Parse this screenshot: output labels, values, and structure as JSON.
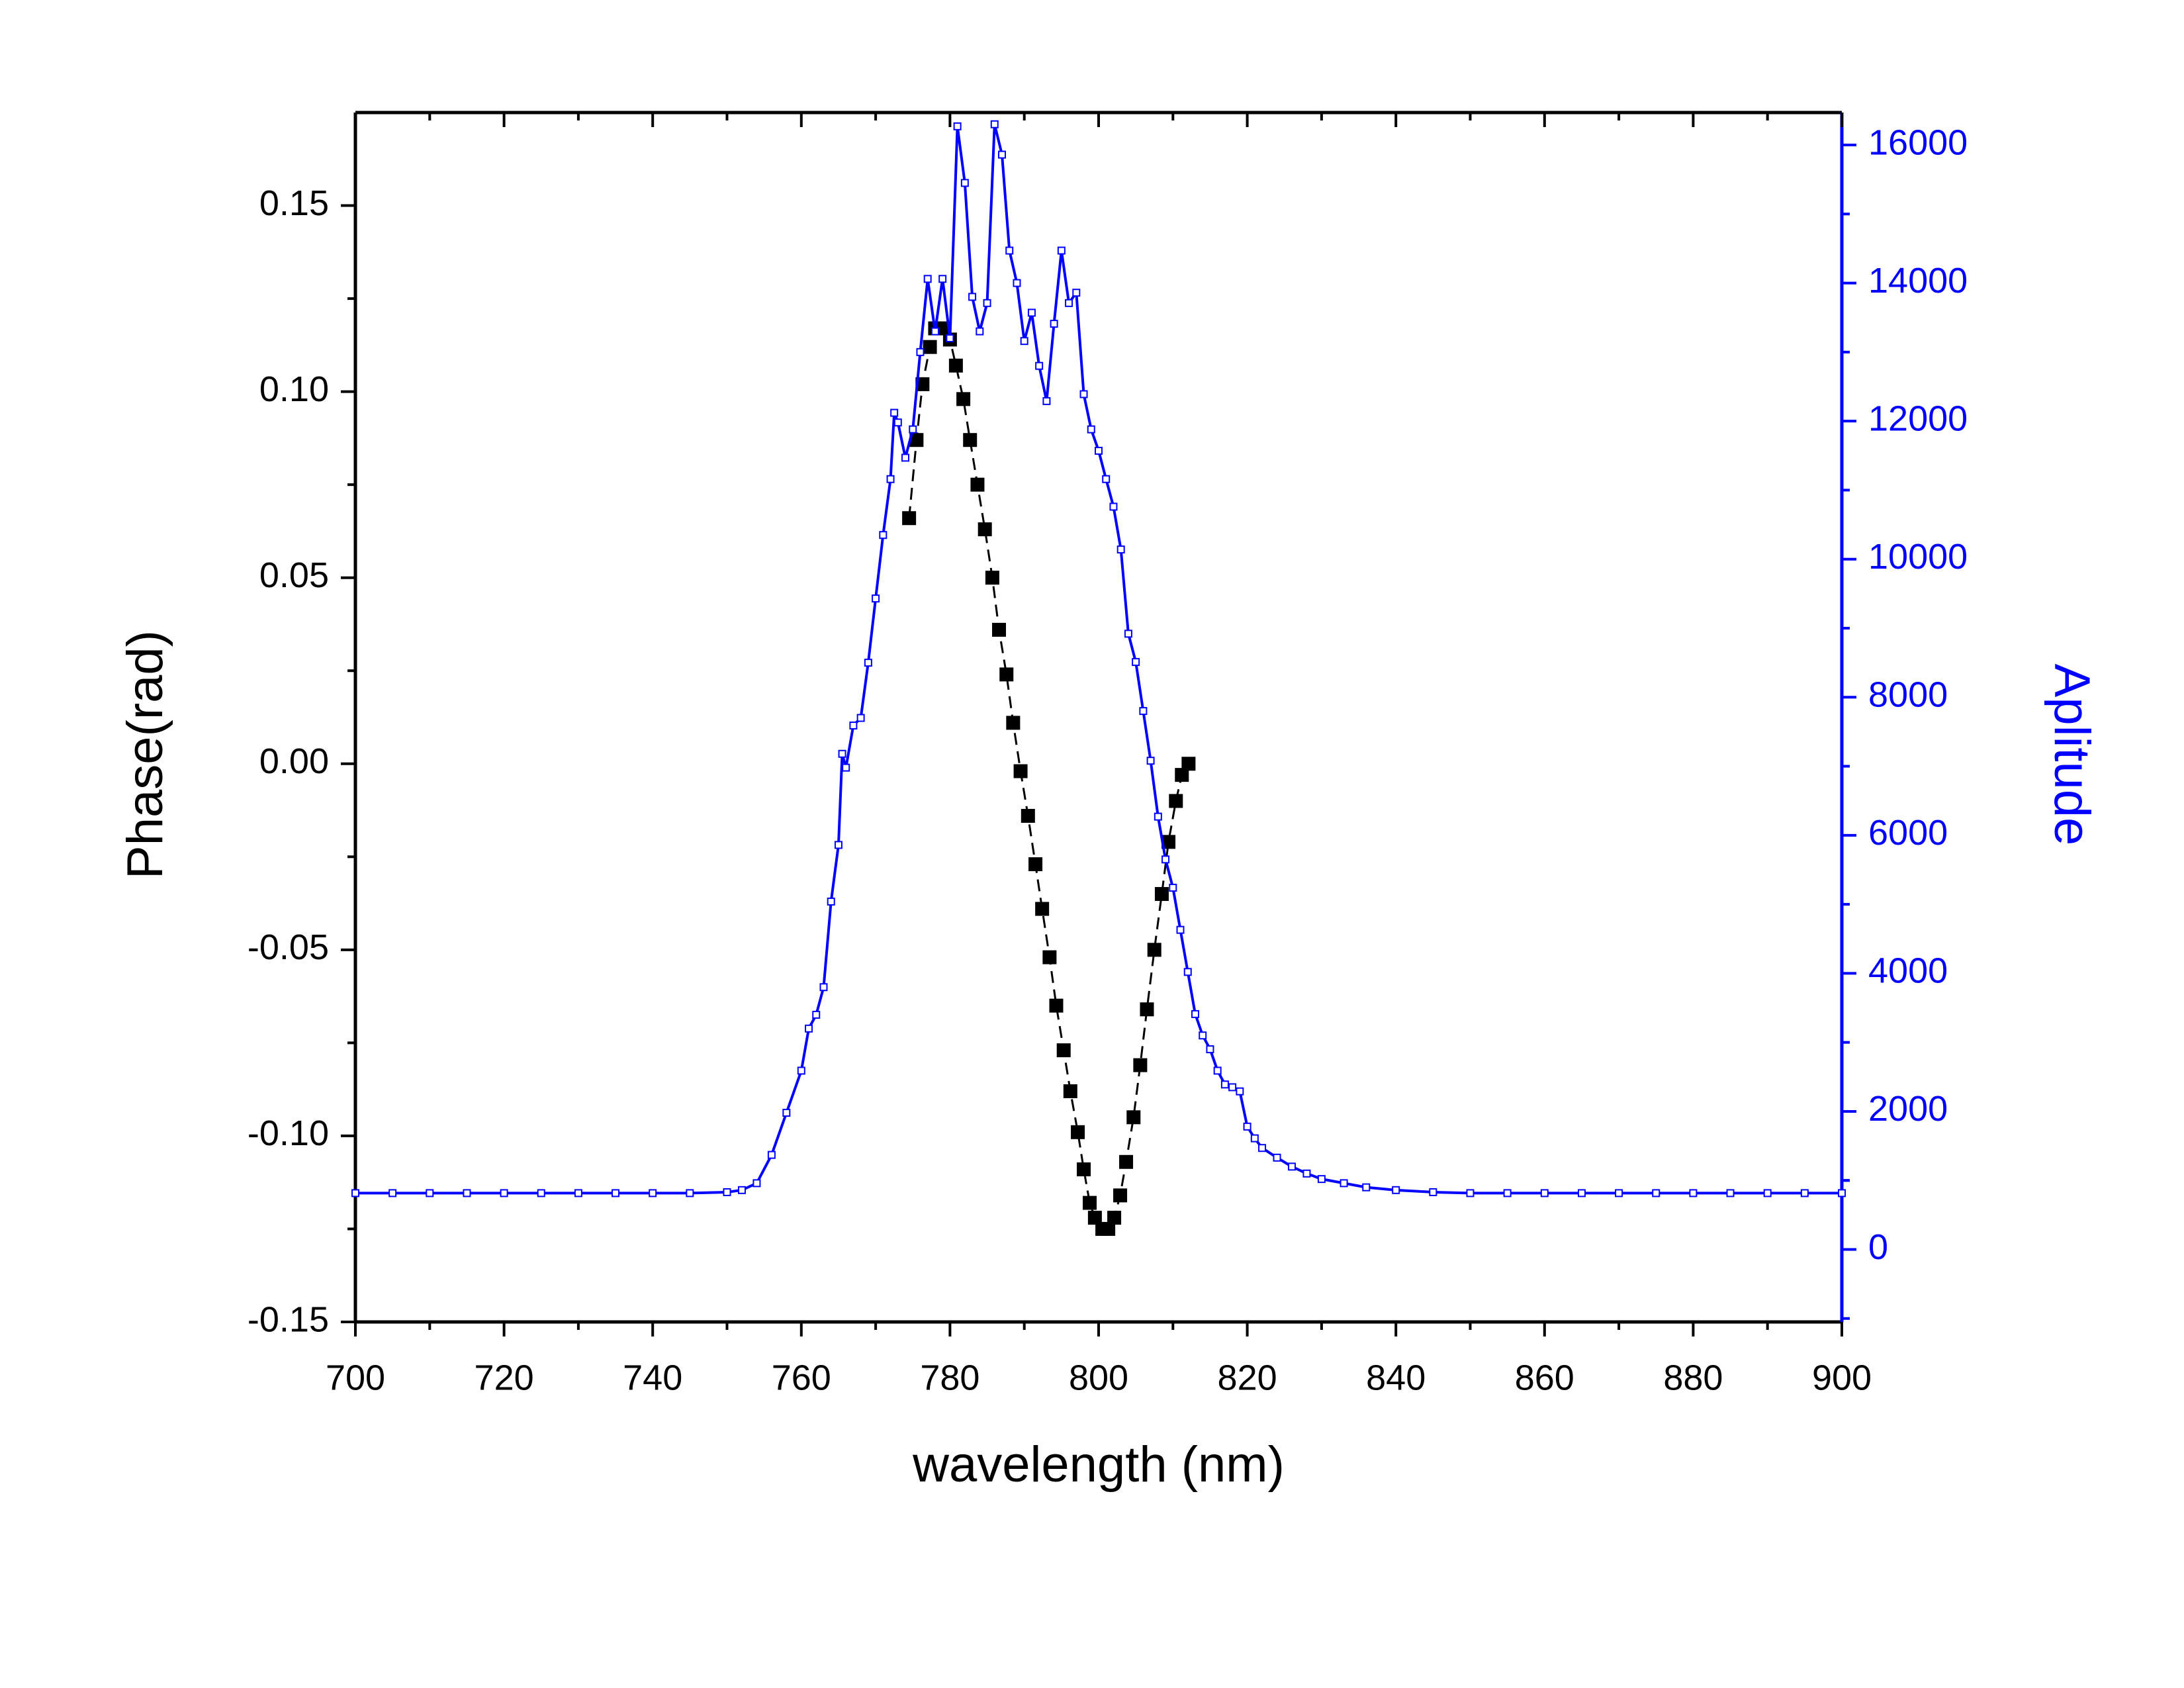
{
  "chart_data": {
    "type": "line",
    "x_label": "wavelength (nm)",
    "y_label": "Phase(rad)",
    "y2_label": "Aplitude",
    "xlim": [
      700,
      900
    ],
    "xticks": [
      700,
      720,
      740,
      760,
      780,
      800,
      820,
      840,
      860,
      880,
      900
    ],
    "ylim": [
      -0.15,
      0.175
    ],
    "yticks": [
      -0.15,
      {
        "value": -0.1,
        "label": "-0.10"
      },
      -0.05,
      {
        "value": 0,
        "label": "0.00"
      },
      0.05,
      {
        "value": 0.1,
        "label": "0.10"
      },
      0.15
    ],
    "y2lim": [
      -1050,
      16470
    ],
    "y2ticks": [
      0,
      2000,
      4000,
      6000,
      8000,
      10000,
      12000,
      14000,
      16000
    ],
    "y2color": "#0000ff",
    "series": [
      {
        "color": "#000000",
        "marker": "filled-square",
        "dash": true,
        "x": [
          774.5,
          775.5,
          776.3,
          777.3,
          778,
          779,
          780,
          780.8,
          781.8,
          782.7,
          783.7,
          784.7,
          785.7,
          786.6,
          787.6,
          788.5,
          789.5,
          790.5,
          791.5,
          792.4,
          793.4,
          794.3,
          795.3,
          796.2,
          797.2,
          798,
          798.8,
          799.5,
          800.5,
          801.3,
          802.1,
          802.9,
          803.7,
          804.7,
          805.6,
          806.5,
          807.5,
          808.5,
          809.4,
          810.4,
          811.2,
          812.1
        ],
        "values": [
          0.066,
          0.087,
          0.102,
          0.112,
          0.117,
          0.117,
          0.114,
          0.107,
          0.098,
          0.087,
          0.075,
          0.063,
          0.05,
          0.036,
          0.024,
          0.011,
          -0.002,
          -0.014,
          -0.027,
          -0.039,
          -0.052,
          -0.065,
          -0.077,
          -0.088,
          -0.099,
          -0.109,
          -0.118,
          -0.122,
          -0.125,
          -0.125,
          -0.122,
          -0.116,
          -0.107,
          -0.095,
          -0.081,
          -0.066,
          -0.05,
          -0.035,
          -0.021,
          -0.01,
          -0.003,
          0
        ]
      },
      {
        "color": "#0000ff",
        "marker": "open-square",
        "axis": "y2",
        "x": [
          700,
          705,
          710,
          715,
          720,
          725,
          730,
          735,
          740,
          745,
          750,
          752,
          754,
          756,
          758,
          760,
          761,
          762,
          763,
          764,
          765,
          765.5,
          766,
          767,
          768,
          769,
          770,
          771,
          772,
          772.5,
          773,
          774,
          775,
          776,
          777,
          778,
          779,
          780,
          781,
          782,
          783,
          784,
          785,
          786,
          787,
          788,
          789,
          790,
          791,
          792,
          793,
          794,
          795,
          796,
          797,
          798,
          799,
          800,
          801,
          802,
          803,
          804,
          805,
          806,
          807,
          808,
          809,
          810,
          811,
          812,
          813,
          814,
          815,
          816,
          817,
          818,
          819,
          820,
          821,
          822,
          824,
          826,
          828,
          830,
          833,
          836,
          840,
          845,
          850,
          855,
          860,
          865,
          870,
          875,
          880,
          885,
          890,
          895,
          900
        ],
        "values": [
          816,
          816,
          816,
          816,
          816,
          816,
          816,
          816,
          816,
          816,
          830,
          860,
          960,
          1370,
          1980,
          2590,
          3200,
          3400,
          3800,
          5040,
          5860,
          7180,
          6980,
          7590,
          7700,
          8500,
          9430,
          10350,
          11160,
          12120,
          11980,
          11470,
          11880,
          13000,
          14060,
          13300,
          14060,
          13200,
          16270,
          15450,
          13800,
          13300,
          13710,
          16300,
          15860,
          14470,
          14000,
          13160,
          13570,
          12800,
          12290,
          13410,
          14470,
          13710,
          13860,
          12390,
          11880,
          11570,
          11160,
          10760,
          10140,
          8920,
          8510,
          7800,
          7080,
          6270,
          5650,
          5240,
          4630,
          4020,
          3410,
          3100,
          2900,
          2590,
          2390,
          2350,
          2290,
          1780,
          1610,
          1470,
          1330,
          1200,
          1100,
          1020,
          960,
          900,
          860,
          830,
          816,
          816,
          816,
          816,
          816,
          816,
          816,
          816,
          816,
          816,
          816
        ]
      }
    ]
  }
}
